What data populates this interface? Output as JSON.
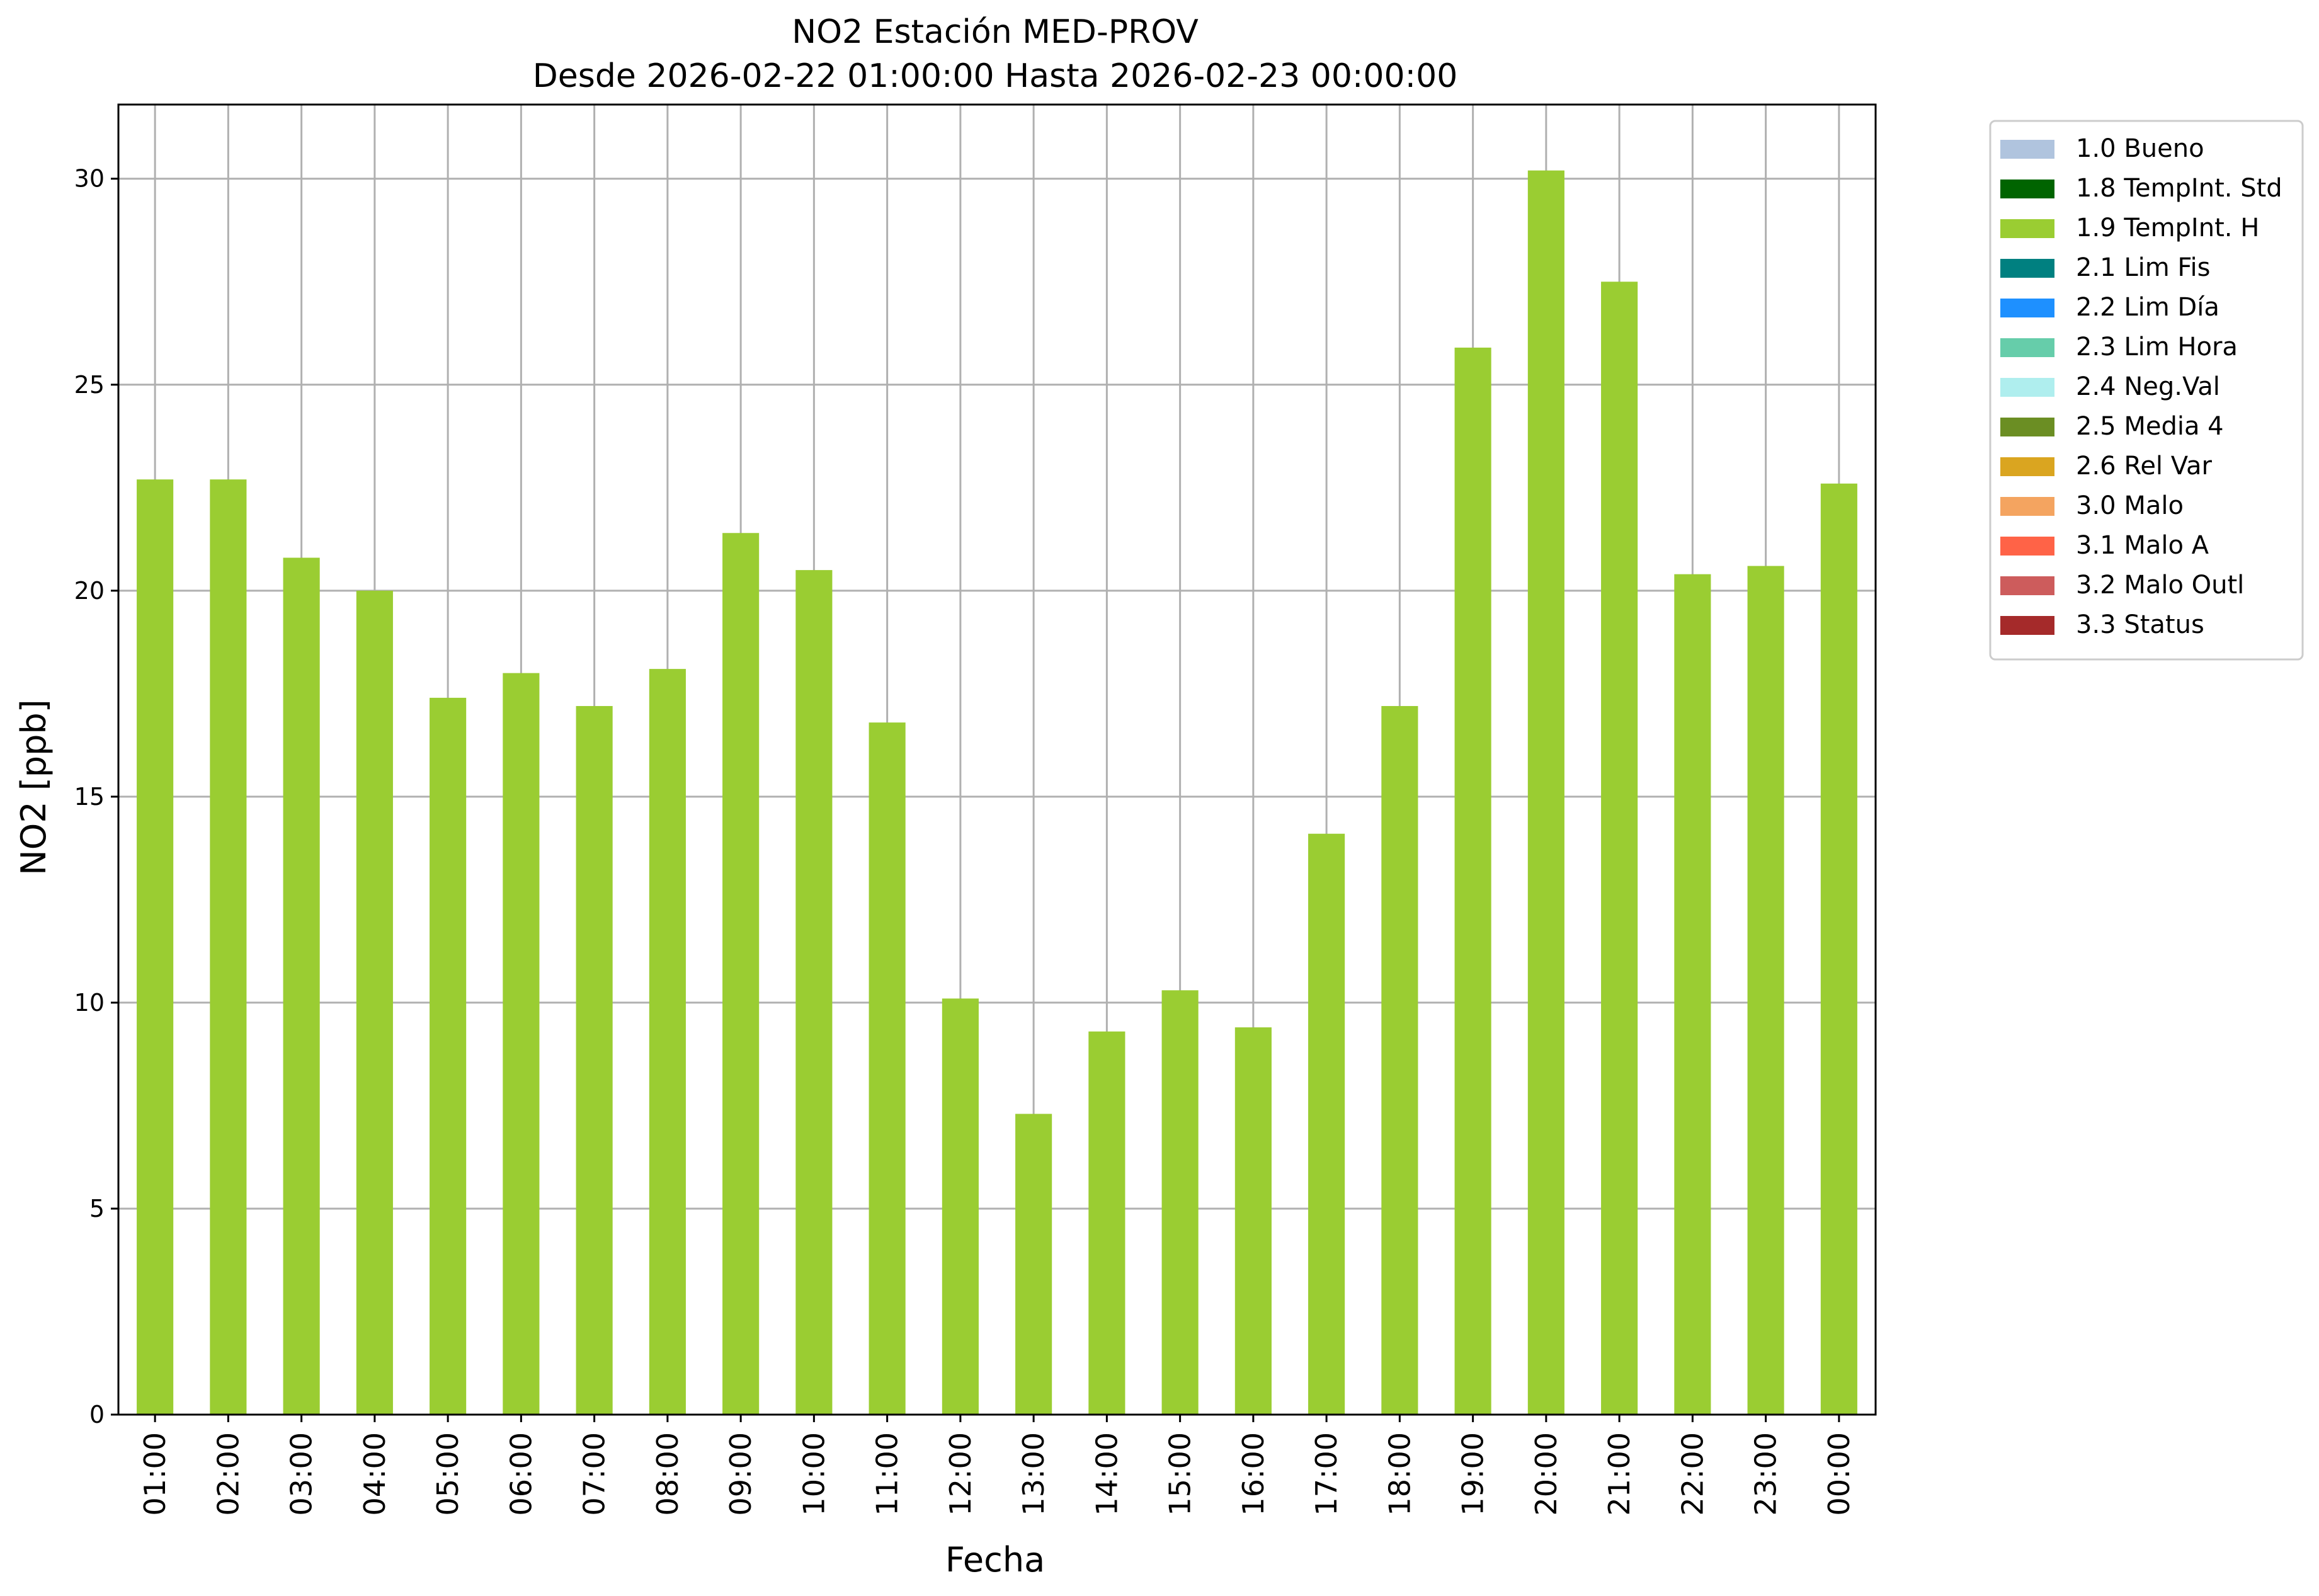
{
  "chart_data": {
    "type": "bar",
    "title": "NO2 Estación MED-PROV",
    "subtitle": "Desde 2026-02-22 01:00:00 Hasta 2026-02-23 00:00:00",
    "xlabel": "Fecha",
    "ylabel": "NO2 [ppb]",
    "ylim": [
      0,
      31.8
    ],
    "yticks": [
      0,
      5,
      10,
      15,
      20,
      25,
      30
    ],
    "grid": true,
    "legend_position": "outside-top-right",
    "categories": [
      "01:00",
      "02:00",
      "03:00",
      "04:00",
      "05:00",
      "06:00",
      "07:00",
      "08:00",
      "09:00",
      "10:00",
      "11:00",
      "12:00",
      "13:00",
      "14:00",
      "15:00",
      "16:00",
      "17:00",
      "18:00",
      "19:00",
      "20:00",
      "21:00",
      "22:00",
      "23:00",
      "00:00"
    ],
    "series": [
      {
        "name": "1.9 TempInt. H",
        "color": "#9ACD32",
        "values": [
          22.7,
          22.7,
          20.8,
          20.0,
          17.4,
          18.0,
          17.2,
          18.1,
          21.4,
          20.5,
          16.8,
          10.1,
          7.3,
          9.3,
          10.3,
          9.4,
          14.1,
          17.2,
          25.9,
          30.2,
          27.5,
          20.4,
          20.6,
          22.6
        ]
      }
    ],
    "legend": [
      {
        "label": "1.0 Bueno",
        "color": "#B0C4DE"
      },
      {
        "label": "1.8 TempInt. Std",
        "color": "#006400"
      },
      {
        "label": "1.9 TempInt. H",
        "color": "#9ACD32"
      },
      {
        "label": "2.1 Lim Fis",
        "color": "#008080"
      },
      {
        "label": "2.2 Lim Día",
        "color": "#1E90FF"
      },
      {
        "label": "2.3 Lim Hora",
        "color": "#66CDAA"
      },
      {
        "label": "2.4 Neg.Val",
        "color": "#AFEEEE"
      },
      {
        "label": "2.5 Media 4",
        "color": "#6B8E23"
      },
      {
        "label": "2.6 Rel Var",
        "color": "#DAA520"
      },
      {
        "label": "3.0 Malo",
        "color": "#F4A460"
      },
      {
        "label": "3.1 Malo A",
        "color": "#FF6347"
      },
      {
        "label": "3.2 Malo Outl",
        "color": "#CD5C5C"
      },
      {
        "label": "3.3 Status",
        "color": "#A52A2A"
      }
    ]
  }
}
